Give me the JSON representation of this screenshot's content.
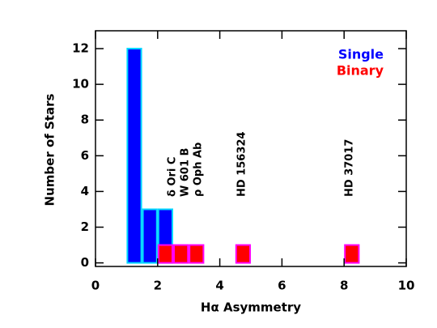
{
  "chart_data": {
    "type": "histogram",
    "xlabel": "Hα Asymmetry",
    "ylabel": "Number of Stars",
    "xlim": [
      0,
      10
    ],
    "xticks": [
      0,
      2,
      4,
      6,
      8,
      10
    ],
    "ylim": [
      -0.2,
      13
    ],
    "yticks": [
      0,
      2,
      4,
      6,
      8,
      10,
      12
    ],
    "legend": "upper right",
    "series": [
      {
        "name": "Single",
        "color": "#0000ff",
        "edgecolor": "#00d8ff",
        "bins": [
          1.0,
          1.5,
          2.0,
          2.5
        ],
        "counts": [
          12,
          3,
          3
        ]
      },
      {
        "name": "Binary",
        "color": "#ff0000",
        "edgecolor": "#ff00ff",
        "bins": [
          2.0,
          2.5,
          3.0,
          3.5,
          4.0,
          4.5,
          5.0,
          5.5,
          6.0,
          6.5,
          7.0,
          7.5,
          8.0,
          8.5
        ],
        "counts": [
          1,
          1,
          1,
          0,
          0,
          1,
          0,
          0,
          0,
          0,
          0,
          0,
          1
        ]
      }
    ],
    "annotations": [
      "δ Ori C",
      "W 601 B",
      "ρ Oph Ab",
      "HD 156324",
      "HD 37017"
    ]
  }
}
